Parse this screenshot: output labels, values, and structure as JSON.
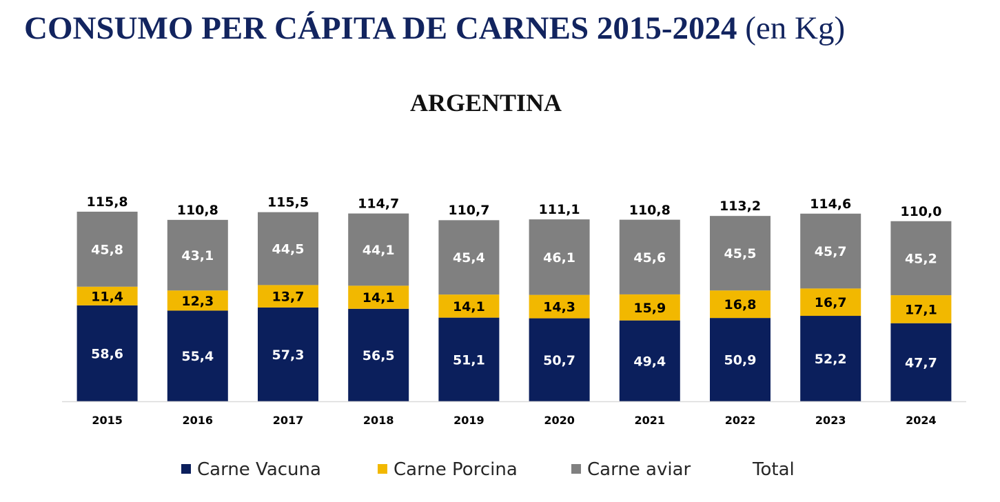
{
  "title": {
    "main": "CONSUMO PER CÁPITA DE CARNES 2015-2024",
    "unit": "(en Kg)"
  },
  "chart_data": {
    "type": "bar",
    "stacked": true,
    "title": "ARGENTINA",
    "xlabel": "",
    "ylabel": "",
    "ylim": [
      0,
      120
    ],
    "legend": "bottom",
    "categories": [
      "2015",
      "2016",
      "2017",
      "2018",
      "2019",
      "2020",
      "2021",
      "2022",
      "2023",
      "2024"
    ],
    "series": [
      {
        "name": "Carne Vacuna",
        "color": "#0b1f5c",
        "label_color": "#ffffff",
        "values": [
          58.6,
          55.4,
          57.3,
          56.5,
          51.1,
          50.7,
          49.4,
          50.9,
          52.2,
          47.7
        ],
        "labels": [
          "58,6",
          "55,4",
          "57,3",
          "56,5",
          "51,1",
          "50,7",
          "49,4",
          "50,9",
          "52,2",
          "47,7"
        ]
      },
      {
        "name": "Carne Porcina",
        "color": "#f2b800",
        "label_color": "#000000",
        "values": [
          11.4,
          12.3,
          13.7,
          14.1,
          14.1,
          14.3,
          15.9,
          16.8,
          16.7,
          17.1
        ],
        "labels": [
          "11,4",
          "12,3",
          "13,7",
          "14,1",
          "14,1",
          "14,3",
          "15,9",
          "16,8",
          "16,7",
          "17,1"
        ]
      },
      {
        "name": "Carne aviar",
        "color": "#808080",
        "label_color": "#ffffff",
        "values": [
          45.8,
          43.1,
          44.5,
          44.1,
          45.4,
          46.1,
          45.6,
          45.5,
          45.7,
          45.2
        ],
        "labels": [
          "45,8",
          "43,1",
          "44,5",
          "44,1",
          "45,4",
          "46,1",
          "45,6",
          "45,5",
          "45,7",
          "45,2"
        ]
      }
    ],
    "totals": {
      "name": "Total",
      "values": [
        115.8,
        110.8,
        115.5,
        114.7,
        110.7,
        111.1,
        110.8,
        113.2,
        114.6,
        110.0
      ],
      "labels": [
        "115,8",
        "110,8",
        "115,5",
        "114,7",
        "110,7",
        "111,1",
        "110,8",
        "113,2",
        "114,6",
        "110,0"
      ]
    }
  }
}
